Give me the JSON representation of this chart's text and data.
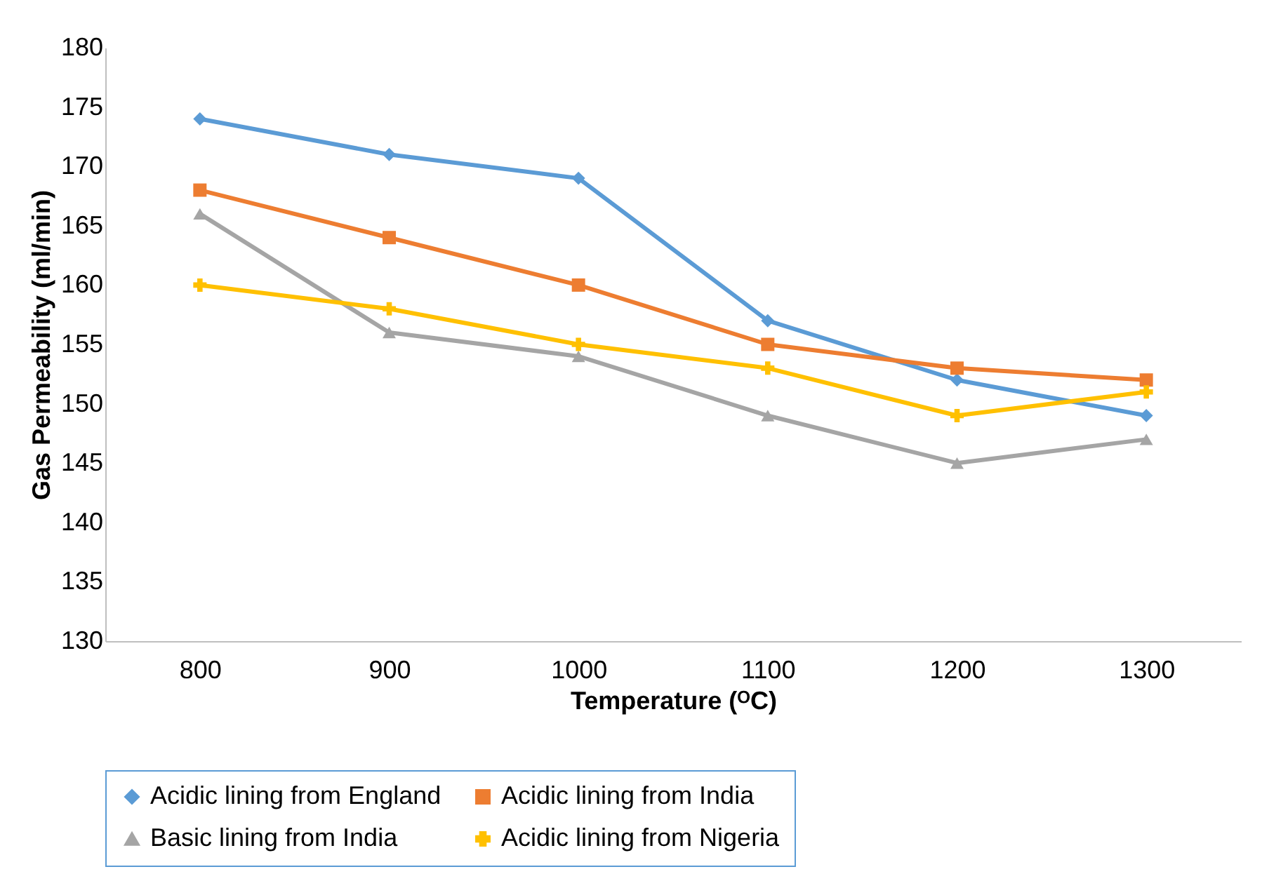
{
  "chart_data": {
    "type": "line",
    "xlabel": "Temperature (ᴼC)",
    "ylabel": "Gas Permeability (ml/min)",
    "categories": [
      "800",
      "900",
      "1000",
      "1100",
      "1200",
      "1300"
    ],
    "series": [
      {
        "name": "Acidic lining from England",
        "color": "#5b9bd5",
        "marker": "diamond",
        "values": [
          174,
          171,
          169,
          157,
          152,
          149
        ]
      },
      {
        "name": "Acidic lining from India",
        "color": "#ed7d31",
        "marker": "square",
        "values": [
          168,
          164,
          160,
          155,
          153,
          152
        ]
      },
      {
        "name": "Basic lining from India",
        "color": "#a5a5a5",
        "marker": "triangle",
        "values": [
          166,
          156,
          154,
          149,
          145,
          147
        ]
      },
      {
        "name": "Acidic lining from Nigeria",
        "color": "#ffc000",
        "marker": "cross",
        "values": [
          160,
          158,
          155,
          153,
          149,
          151
        ]
      }
    ],
    "ylim": [
      130,
      180
    ],
    "yticks": [
      130,
      135,
      140,
      145,
      150,
      155,
      160,
      165,
      170,
      175,
      180
    ],
    "grid": false,
    "legend": "bottom",
    "line_style": "solid"
  }
}
